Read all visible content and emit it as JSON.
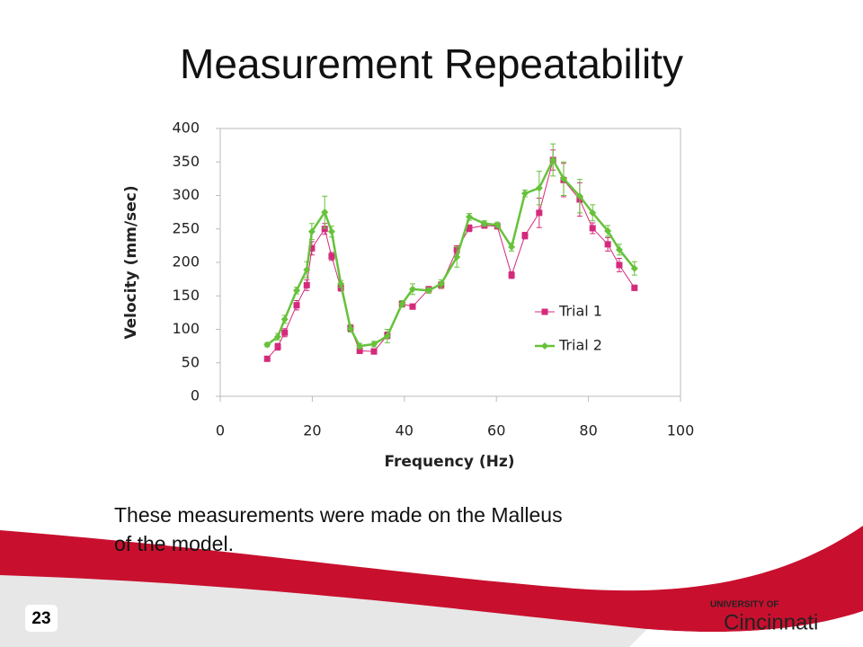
{
  "slide": {
    "title": "Measurement Repeatability",
    "caption": [
      "These measurements were made on the Malleus",
      "of the model."
    ],
    "page_number": "23"
  },
  "logo": {
    "university_of": "UNIVERSITY OF",
    "name": "Cincinnati"
  },
  "chart_data": {
    "type": "line",
    "xlabel": "Frequency (Hz)",
    "ylabel": "Velocity (mm/sec)",
    "xlim": [
      0,
      100
    ],
    "xticks": [
      0,
      20,
      40,
      60,
      80,
      100
    ],
    "ylim": [
      0,
      400
    ],
    "yticks": [
      0,
      50,
      100,
      150,
      200,
      250,
      300,
      350,
      400
    ],
    "grid": false,
    "legend": "right",
    "x": [
      10.2,
      12.5,
      14,
      16.6,
      18.8,
      19.9,
      22.7,
      24.2,
      26.2,
      28.3,
      30.3,
      33.4,
      36.3,
      39.5,
      41.8,
      45.3,
      48,
      51.4,
      54.1,
      57.4,
      60.2,
      63.3,
      66.2,
      69.3,
      72.3,
      74.6,
      78.1,
      80.9,
      84.2,
      86.7,
      90
    ],
    "series": [
      {
        "name": "Trial 1",
        "color": "#d42a7c",
        "marker": "square",
        "values": [
          56,
          74,
          95,
          136,
          166,
          221,
          250,
          209,
          162,
          102,
          68,
          67,
          91,
          138,
          134,
          160,
          166,
          219,
          251,
          255,
          254,
          181,
          240,
          274,
          353,
          323,
          294,
          251,
          227,
          196,
          162
        ],
        "errors": [
          3,
          5,
          6,
          7,
          8,
          10,
          8,
          6,
          5,
          5,
          4,
          4,
          5,
          4,
          4,
          4,
          5,
          6,
          5,
          4,
          4,
          5,
          5,
          22,
          15,
          25,
          25,
          8,
          10,
          10,
          4
        ]
      },
      {
        "name": "Trial 2",
        "color": "#66c23a",
        "marker": "diamond",
        "values": [
          77,
          89,
          115,
          158,
          189,
          246,
          275,
          246,
          168,
          101,
          75,
          78,
          90,
          138,
          160,
          158,
          168,
          208,
          268,
          258,
          256,
          223,
          303,
          311,
          353,
          325,
          299,
          274,
          247,
          219,
          191
        ],
        "errors": [
          3,
          5,
          6,
          5,
          12,
          12,
          24,
          8,
          5,
          5,
          4,
          4,
          10,
          5,
          8,
          4,
          6,
          15,
          5,
          4,
          4,
          6,
          5,
          25,
          24,
          25,
          25,
          12,
          8,
          8,
          10
        ]
      }
    ]
  }
}
